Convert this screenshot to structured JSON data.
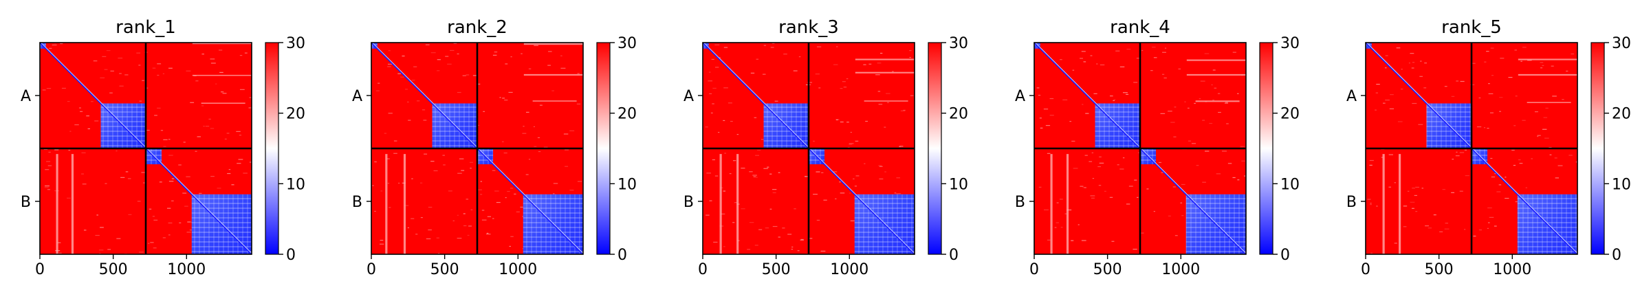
{
  "chart_data": [
    {
      "type": "heatmap",
      "title": "rank_1",
      "xlim": [
        0,
        1444
      ],
      "ylim": [
        1444,
        0
      ],
      "chain_break": 722,
      "x_ticks": [
        0,
        500,
        1000
      ],
      "y_tick_labels": [
        {
          "label": "A",
          "pos": 361
        },
        {
          "label": "B",
          "pos": 1083
        }
      ],
      "colorbar": {
        "vmin": 0,
        "vmax": 30,
        "ticks": [
          0,
          10,
          20,
          30
        ],
        "colormap": "bwr"
      },
      "low_blocks": [
        [
          0,
          0,
          41,
          41
        ],
        [
          415,
          415,
          722,
          722
        ],
        [
          722,
          722,
          830,
          830
        ],
        [
          1035,
          1035,
          1444,
          1444
        ]
      ],
      "stripes": [
        [
          1040,
          0,
          1444,
          10
        ],
        [
          1040,
          220,
          1444,
          225
        ],
        [
          1100,
          410,
          1400,
          415
        ],
        [
          110,
          760,
          125,
          1444
        ],
        [
          215,
          760,
          230,
          1444
        ]
      ],
      "noise_seed": 11
    },
    {
      "type": "heatmap",
      "title": "rank_2",
      "xlim": [
        0,
        1444
      ],
      "ylim": [
        1444,
        0
      ],
      "chain_break": 722,
      "x_ticks": [
        0,
        500,
        1000
      ],
      "y_tick_labels": [
        {
          "label": "A",
          "pos": 361
        },
        {
          "label": "B",
          "pos": 1083
        }
      ],
      "colorbar": {
        "vmin": 0,
        "vmax": 30,
        "ticks": [
          0,
          10,
          20,
          30
        ],
        "colormap": "bwr"
      },
      "low_blocks": [
        [
          0,
          0,
          41,
          41
        ],
        [
          415,
          415,
          722,
          722
        ],
        [
          722,
          722,
          830,
          830
        ],
        [
          1035,
          1035,
          1444,
          1444
        ]
      ],
      "stripes": [
        [
          1040,
          0,
          1444,
          15
        ],
        [
          1040,
          215,
          1444,
          225
        ],
        [
          1100,
          395,
          1400,
          400
        ],
        [
          95,
          760,
          110,
          1444
        ],
        [
          220,
          760,
          235,
          1444
        ]
      ],
      "noise_seed": 23
    },
    {
      "type": "heatmap",
      "title": "rank_3",
      "xlim": [
        0,
        1444
      ],
      "ylim": [
        1444,
        0
      ],
      "chain_break": 722,
      "x_ticks": [
        0,
        500,
        1000
      ],
      "y_tick_labels": [
        {
          "label": "A",
          "pos": 361
        },
        {
          "label": "B",
          "pos": 1083
        }
      ],
      "colorbar": {
        "vmin": 0,
        "vmax": 30,
        "ticks": [
          0,
          10,
          20,
          30
        ],
        "colormap": "bwr"
      },
      "low_blocks": [
        [
          0,
          0,
          41,
          41
        ],
        [
          415,
          415,
          722,
          722
        ],
        [
          722,
          722,
          830,
          830
        ],
        [
          1035,
          1035,
          1444,
          1444
        ]
      ],
      "stripes": [
        [
          1040,
          110,
          1444,
          120
        ],
        [
          1040,
          200,
          1444,
          210
        ],
        [
          1100,
          395,
          1400,
          400
        ],
        [
          115,
          760,
          130,
          1444
        ],
        [
          230,
          760,
          245,
          1444
        ]
      ],
      "noise_seed": 37
    },
    {
      "type": "heatmap",
      "title": "rank_4",
      "xlim": [
        0,
        1444
      ],
      "ylim": [
        1444,
        0
      ],
      "chain_break": 722,
      "x_ticks": [
        0,
        500,
        1000
      ],
      "y_tick_labels": [
        {
          "label": "A",
          "pos": 361
        },
        {
          "label": "B",
          "pos": 1083
        }
      ],
      "colorbar": {
        "vmin": 0,
        "vmax": 30,
        "ticks": [
          0,
          10,
          20,
          30
        ],
        "colormap": "bwr"
      },
      "low_blocks": [
        [
          0,
          0,
          41,
          41
        ],
        [
          415,
          415,
          722,
          722
        ],
        [
          722,
          722,
          830,
          830
        ],
        [
          1035,
          1035,
          1444,
          1444
        ]
      ],
      "stripes": [
        [
          1040,
          115,
          1444,
          125
        ],
        [
          1040,
          215,
          1444,
          225
        ],
        [
          1100,
          395,
          1400,
          405
        ],
        [
          110,
          760,
          125,
          1444
        ],
        [
          220,
          760,
          235,
          1444
        ]
      ],
      "noise_seed": 41
    },
    {
      "type": "heatmap",
      "title": "rank_5",
      "xlim": [
        0,
        1444
      ],
      "ylim": [
        1444,
        0
      ],
      "chain_break": 722,
      "x_ticks": [
        0,
        500,
        1000
      ],
      "y_tick_labels": [
        {
          "label": "A",
          "pos": 361
        },
        {
          "label": "B",
          "pos": 1083
        }
      ],
      "colorbar": {
        "vmin": 0,
        "vmax": 30,
        "ticks": [
          0,
          10,
          20,
          30
        ],
        "colormap": "bwr"
      },
      "low_blocks": [
        [
          0,
          0,
          41,
          41
        ],
        [
          415,
          415,
          722,
          722
        ],
        [
          722,
          722,
          830,
          830
        ],
        [
          1035,
          1035,
          1444,
          1444
        ]
      ],
      "stripes": [
        [
          1040,
          110,
          1444,
          120
        ],
        [
          1040,
          215,
          1444,
          225
        ],
        [
          1100,
          405,
          1400,
          410
        ],
        [
          115,
          760,
          130,
          1444
        ],
        [
          225,
          760,
          240,
          1444
        ]
      ],
      "noise_seed": 53
    }
  ]
}
